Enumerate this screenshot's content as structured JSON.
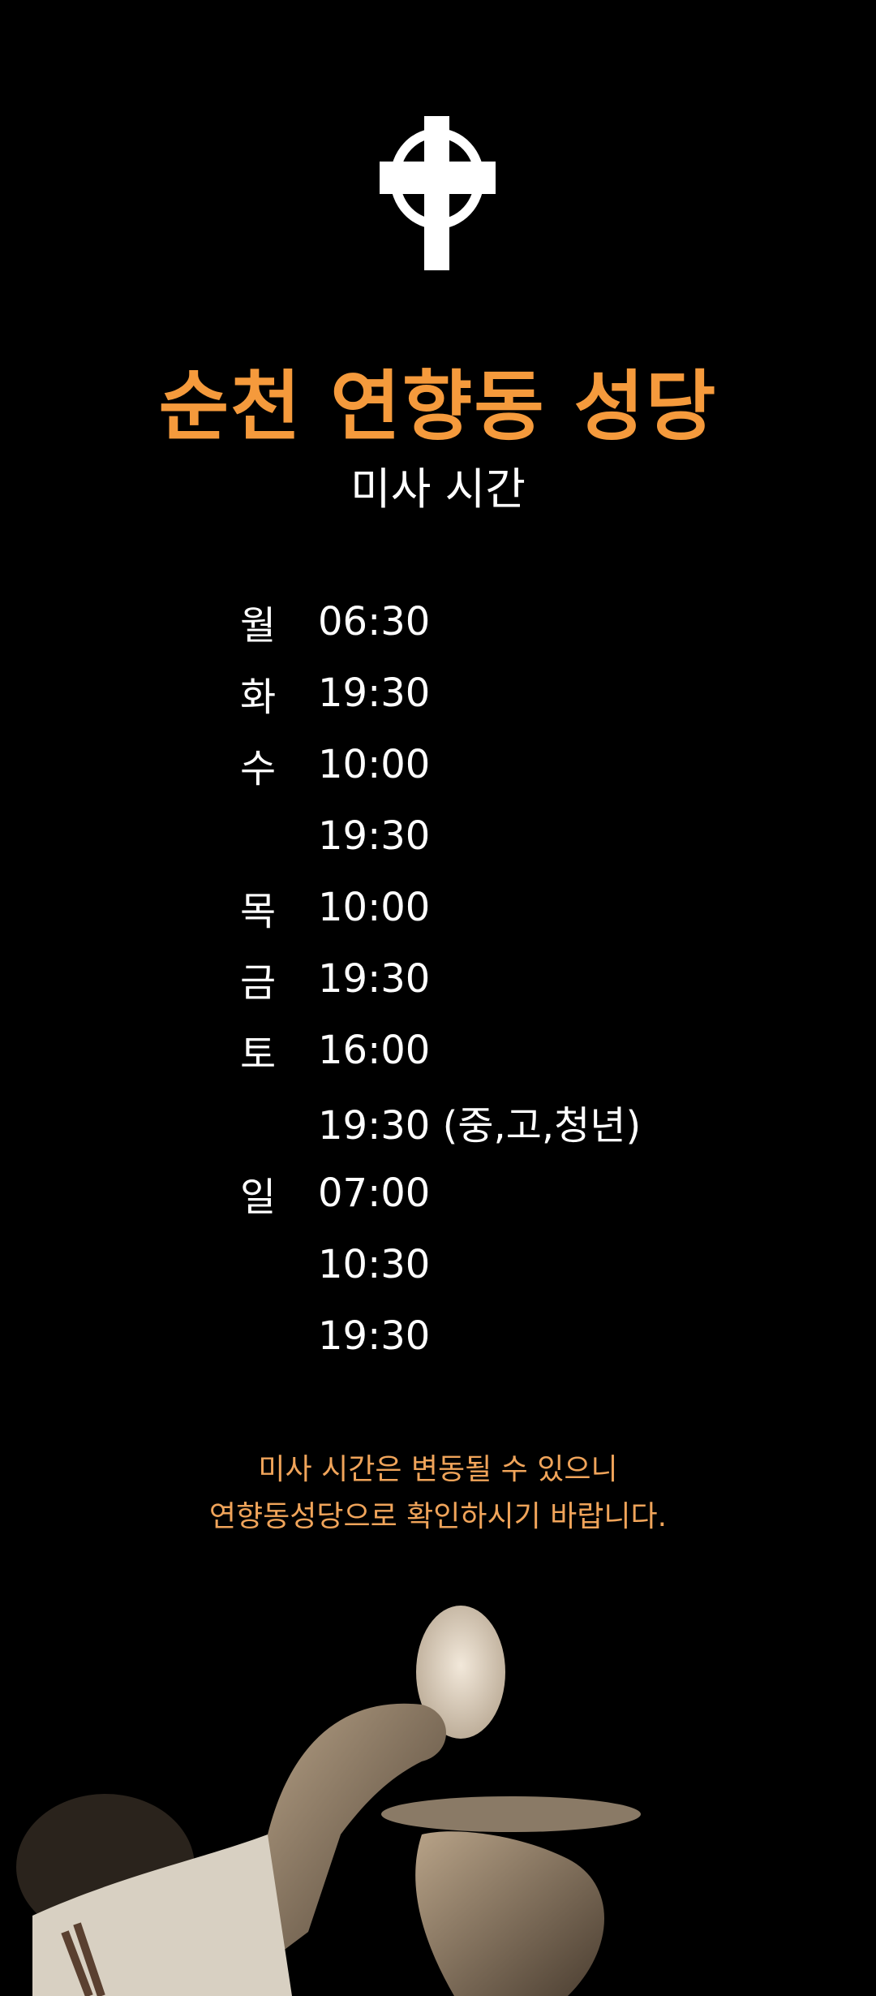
{
  "header": {
    "icon": "celtic-cross-icon",
    "title": "순천 연향동 성당",
    "subtitle": "미사 시간"
  },
  "schedule": [
    {
      "day": "월",
      "time": "06:30"
    },
    {
      "day": "화",
      "time": "19:30"
    },
    {
      "day": "수",
      "time": "10:00"
    },
    {
      "day": "",
      "time": "19:30"
    },
    {
      "day": "목",
      "time": "10:00"
    },
    {
      "day": "금",
      "time": "19:30"
    },
    {
      "day": "토",
      "time": "16:00"
    },
    {
      "day": "",
      "time": "19:30 (중,고,청년)"
    },
    {
      "day": "일",
      "time": "07:00"
    },
    {
      "day": "",
      "time": "10:30"
    },
    {
      "day": "",
      "time": "19:30"
    }
  ],
  "notice": {
    "line1": "미사 시간은 변동될 수 있으니",
    "line2": "연향동성당으로 확인하시기 바랍니다."
  },
  "colors": {
    "background": "#000000",
    "accent": "#f59a3c",
    "notice": "#f0a45a",
    "text": "#ffffff"
  }
}
